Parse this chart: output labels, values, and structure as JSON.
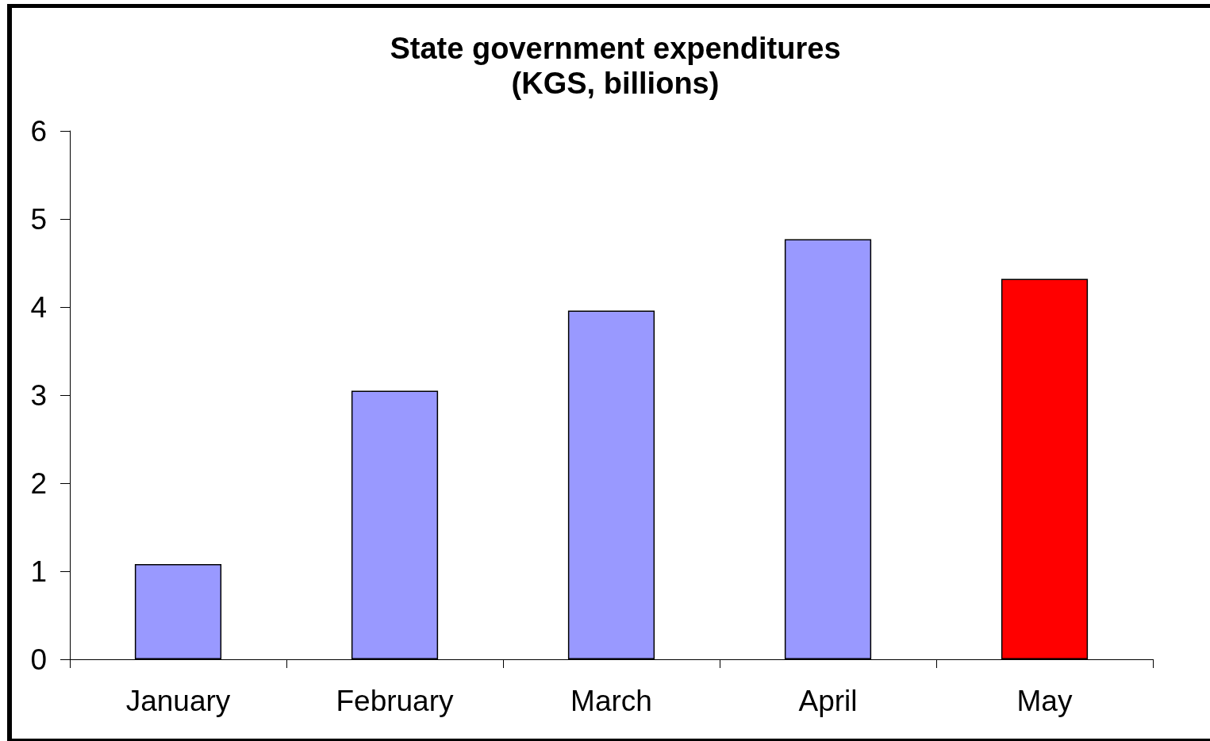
{
  "chart_data": {
    "type": "bar",
    "title": "State government expenditures\n(KGS, billions)",
    "categories": [
      "January",
      "February",
      "March",
      "April",
      "May"
    ],
    "values": [
      1.08,
      3.05,
      3.96,
      4.77,
      4.32
    ],
    "colors": [
      "#9999ff",
      "#9999ff",
      "#9999ff",
      "#9999ff",
      "#ff0000"
    ],
    "ylim": [
      0,
      6
    ],
    "yticks": [
      0,
      1,
      2,
      3,
      4,
      5,
      6
    ],
    "grid": false
  }
}
